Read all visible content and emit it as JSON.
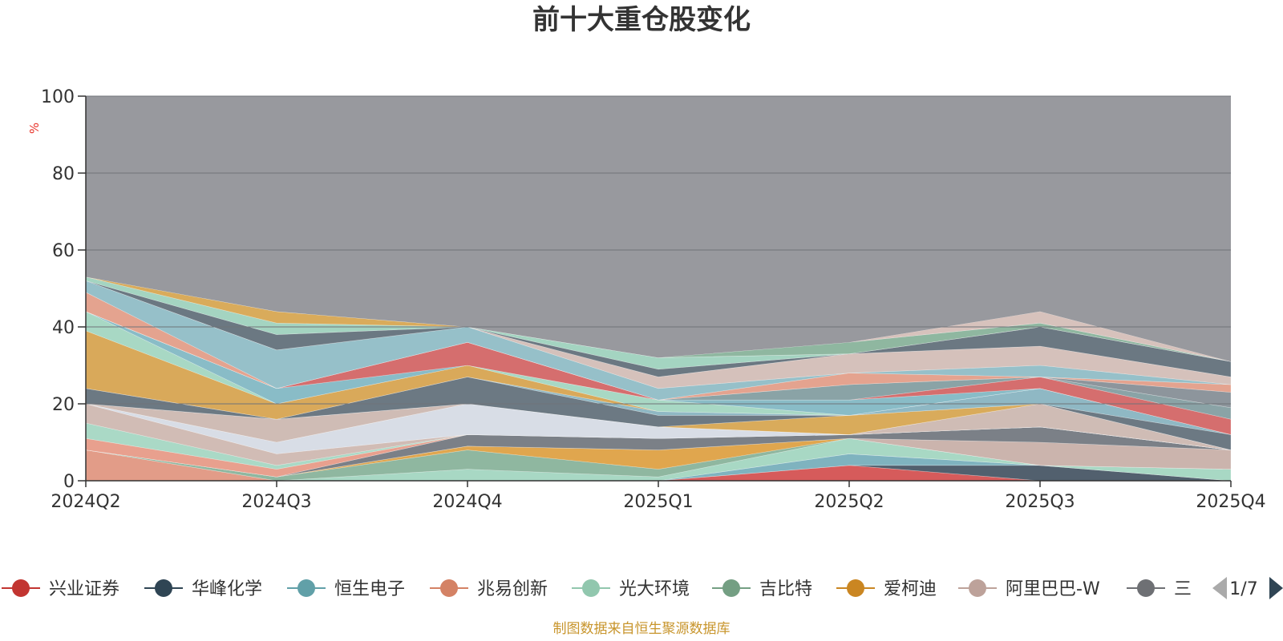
{
  "chart_data": {
    "type": "area",
    "stacked": true,
    "title": "前十大重仓股变化",
    "ylabel": "%",
    "ylim": [
      0,
      100
    ],
    "yticks": [
      0,
      20,
      40,
      60,
      80,
      100
    ],
    "grid": true,
    "categories": [
      "2024Q2",
      "2024Q3",
      "2024Q4",
      "2025Q1",
      "2025Q2",
      "2025Q3",
      "2025Q4"
    ],
    "series": [
      {
        "name": "兴业证券",
        "color": "#d65b5b",
        "values": [
          0,
          0,
          0,
          0,
          4,
          0,
          0
        ]
      },
      {
        "name": "华峰化学",
        "color": "#52606e",
        "values": [
          0,
          0,
          0,
          0,
          0,
          4,
          0
        ]
      },
      {
        "name": "恒生电子",
        "color": "#7fb3bf",
        "values": [
          0,
          0,
          0,
          0,
          3,
          0,
          0
        ]
      },
      {
        "name": "兆易创新",
        "color": "#e29c88",
        "values": [
          8,
          0,
          0,
          0,
          0,
          0,
          0
        ]
      },
      {
        "name": "光大环境",
        "color": "#a8d8c4",
        "values": [
          0,
          0,
          3,
          1,
          4,
          0,
          3
        ]
      },
      {
        "name": "吉比特",
        "color": "#8fb7a0",
        "values": [
          0,
          1,
          5,
          2,
          0,
          0,
          0
        ]
      },
      {
        "name": "爱柯迪",
        "color": "#e0a64e",
        "values": [
          0,
          0,
          1,
          5,
          0,
          0,
          0
        ]
      },
      {
        "name": "阿里巴巴-W",
        "color": "#cbb4ad",
        "values": [
          0,
          0,
          0,
          0,
          0,
          6,
          5
        ]
      },
      {
        "name": "三",
        "color": "#7b8087",
        "values": [
          0,
          0,
          3,
          3,
          1,
          4,
          0
        ]
      }
    ],
    "legend_position": "bottom",
    "legend_page": "1/7",
    "source_note": "制图数据来自恒生聚源数据库"
  },
  "bands": [
    {
      "color": "#e4a995",
      "values": [
        0,
        0,
        0,
        0,
        0,
        0,
        0
      ]
    },
    {
      "color": "#e8a08e",
      "values": [
        3,
        2,
        0,
        0,
        0,
        0,
        0
      ]
    },
    {
      "color": "#aad9c6",
      "values": [
        4,
        1,
        0,
        0,
        0,
        0,
        0
      ]
    },
    {
      "color": "#d1bcb5",
      "values": [
        5,
        3,
        0,
        0,
        0,
        0,
        0
      ]
    },
    {
      "color": "#d8dde6",
      "values": [
        0,
        3,
        8,
        3,
        0,
        0,
        0
      ]
    },
    {
      "color": "#6c7983",
      "values": [
        0,
        0,
        0,
        0,
        0,
        0,
        0
      ]
    },
    {
      "color": "#cfbcb5",
      "values": [
        0,
        6,
        0,
        0,
        0,
        6,
        0
      ]
    },
    {
      "color": "#d46f6f",
      "values": [
        0,
        0,
        0,
        0,
        0,
        0,
        0
      ]
    },
    {
      "color": "#d9ab5b",
      "values": [
        0,
        0,
        0,
        0,
        5,
        0,
        0
      ]
    },
    {
      "color": "#6c7983",
      "values": [
        4,
        0,
        7,
        3,
        0,
        0,
        4
      ]
    },
    {
      "color": "#8fb8c4",
      "values": [
        0,
        0,
        0,
        1,
        0,
        4,
        0
      ]
    },
    {
      "color": "#d9a95a",
      "values": [
        15,
        4,
        3,
        0,
        0,
        0,
        0
      ]
    },
    {
      "color": "#a8d8c4",
      "values": [
        5,
        0,
        0,
        3,
        0,
        0,
        0
      ]
    },
    {
      "color": "#89bcc7",
      "values": [
        0,
        4,
        0,
        0,
        4,
        0,
        0
      ]
    },
    {
      "color": "#d56e6e",
      "values": [
        0,
        0,
        6,
        0,
        0,
        3,
        4
      ]
    },
    {
      "color": "#8aa3a6",
      "values": [
        0,
        0,
        0,
        0,
        4,
        0,
        3
      ]
    },
    {
      "color": "#8d959c",
      "values": [
        0,
        0,
        0,
        0,
        0,
        0,
        4
      ]
    },
    {
      "color": "#e4a38f",
      "values": [
        5,
        0,
        0,
        0,
        3,
        0,
        2
      ]
    },
    {
      "color": "#96c0c9",
      "values": [
        3,
        10,
        4,
        3,
        0,
        3,
        0
      ]
    },
    {
      "color": "#d5c1bb",
      "values": [
        0,
        0,
        0,
        3,
        5,
        5,
        2
      ]
    },
    {
      "color": "#6b7882",
      "values": [
        0,
        4,
        0,
        2,
        0,
        5,
        4
      ]
    },
    {
      "color": "#a4d4c1",
      "values": [
        1,
        3,
        0,
        3,
        0,
        0,
        0
      ]
    },
    {
      "color": "#d9ab5b",
      "values": [
        0,
        3,
        0,
        0,
        0,
        0,
        0
      ]
    },
    {
      "color": "#8fb7a0",
      "values": [
        0,
        0,
        0,
        0,
        3,
        1,
        0
      ]
    },
    {
      "color": "#d7c2bc",
      "values": [
        0,
        0,
        0,
        0,
        0,
        3,
        0
      ]
    }
  ]
}
